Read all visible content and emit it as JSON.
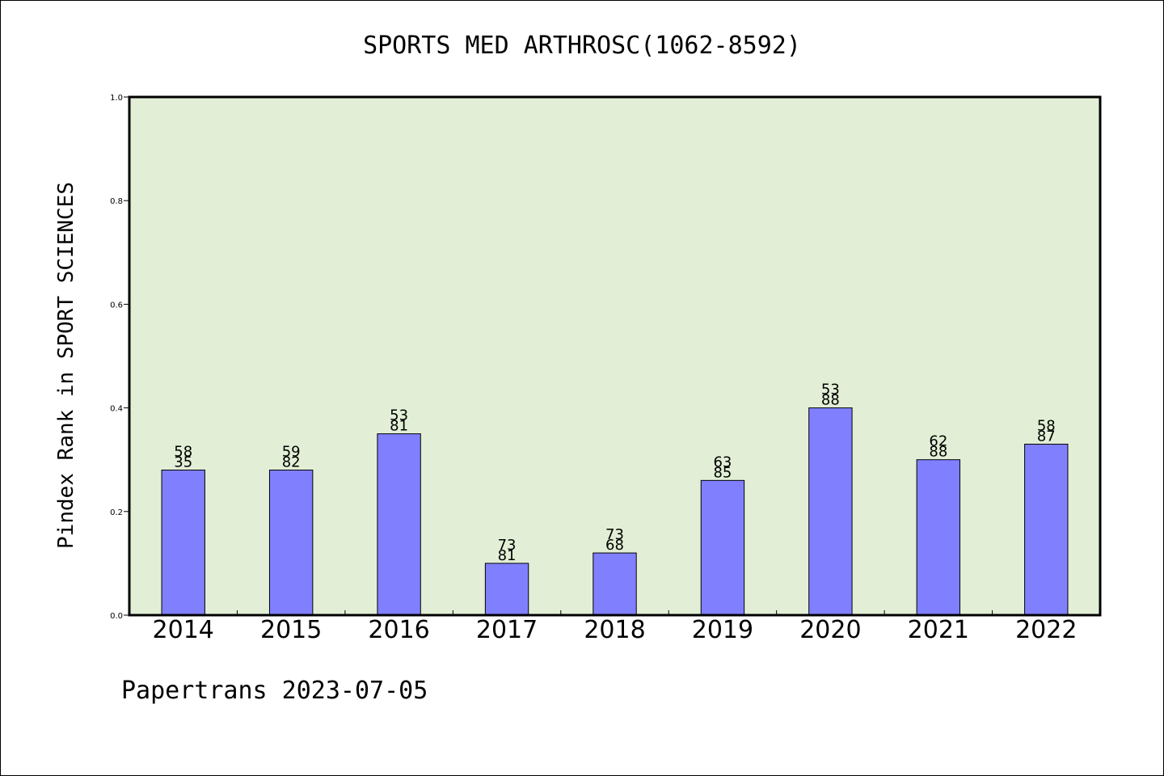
{
  "chart_data": {
    "type": "bar",
    "title": "SPORTS MED ARTHROSC(1062-8592)",
    "ylabel": "Pindex Rank in SPORT SCIENCES",
    "xlabel": "",
    "categories": [
      "2014",
      "2015",
      "2016",
      "2017",
      "2018",
      "2019",
      "2020",
      "2021",
      "2022"
    ],
    "values": [
      0.28,
      0.28,
      0.35,
      0.1,
      0.12,
      0.26,
      0.4,
      0.3,
      0.33
    ],
    "bar_labels": [
      [
        "58",
        "35"
      ],
      [
        "59",
        "82"
      ],
      [
        "53",
        "81"
      ],
      [
        "73",
        "81"
      ],
      [
        "73",
        "68"
      ],
      [
        "63",
        "85"
      ],
      [
        "53",
        "88"
      ],
      [
        "62",
        "88"
      ],
      [
        "58",
        "87"
      ]
    ],
    "ylim": [
      0,
      1.0
    ],
    "yticks": [
      "0.0",
      "0.2",
      "0.4",
      "0.6",
      "0.8",
      "1.0"
    ],
    "grid": false,
    "colors": {
      "plot_background": "#e2efd6",
      "bar_fill": "#8080ff",
      "bar_stroke": "#000000",
      "axis": "#000000"
    }
  },
  "footer": {
    "text": "Papertrans 2023-07-05"
  }
}
